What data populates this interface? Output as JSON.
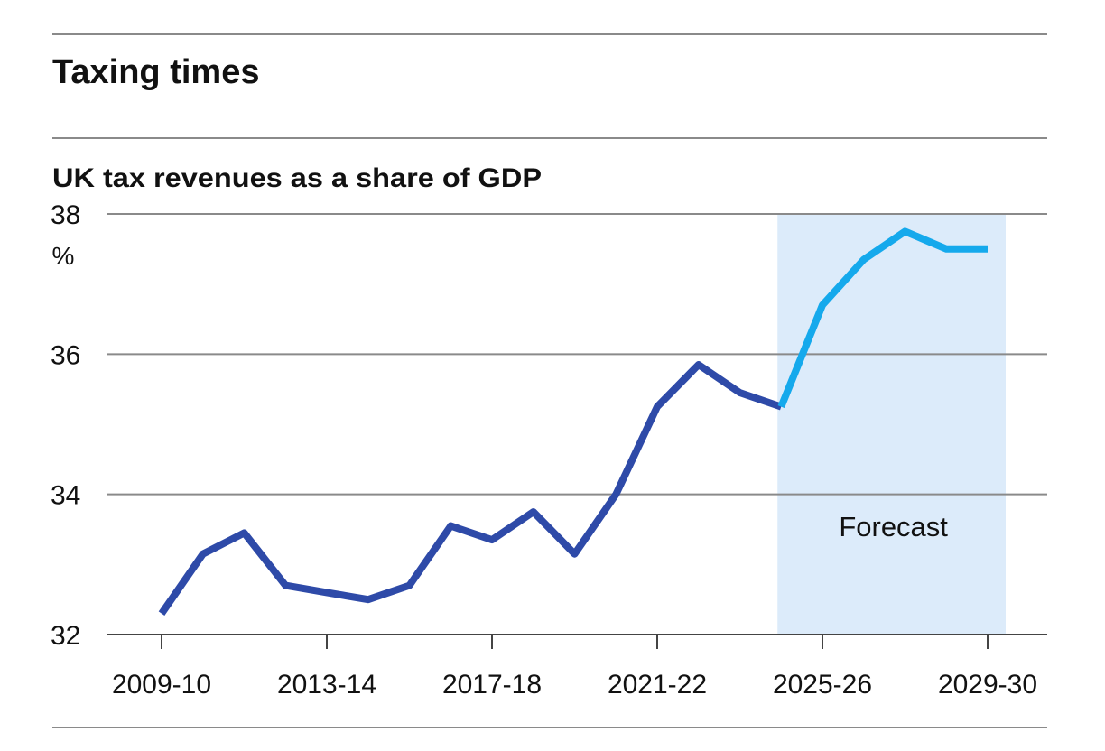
{
  "chart_data": {
    "type": "line",
    "title": "Taxing times",
    "subtitle": "UK tax revenues as a share of GDP",
    "y_unit": "%",
    "ylim": [
      32,
      38
    ],
    "y_ticks": [
      32,
      34,
      36,
      38
    ],
    "x_tick_labels": [
      "2009-10",
      "2013-14",
      "2017-18",
      "2021-22",
      "2025-26",
      "2029-30"
    ],
    "x": [
      "2009-10",
      "2010-11",
      "2011-12",
      "2012-13",
      "2013-14",
      "2014-15",
      "2015-16",
      "2016-17",
      "2017-18",
      "2018-19",
      "2019-20",
      "2020-21",
      "2021-22",
      "2022-23",
      "2023-24",
      "2024-25",
      "2025-26",
      "2026-27",
      "2027-28",
      "2028-29",
      "2029-30"
    ],
    "series": [
      {
        "values": [
          32.3,
          33.15,
          33.45,
          32.7,
          32.6,
          32.5,
          32.7,
          33.55,
          33.35,
          33.75,
          33.15,
          34.0,
          35.25,
          35.85,
          35.45,
          35.25,
          null,
          null,
          null,
          null,
          null
        ],
        "color": "#2e4aa8"
      },
      {
        "values": [
          null,
          null,
          null,
          null,
          null,
          null,
          null,
          null,
          null,
          null,
          null,
          null,
          null,
          null,
          null,
          35.25,
          36.7,
          37.35,
          37.75,
          37.5,
          37.5
        ],
        "color": "#15a9ec"
      }
    ],
    "shaded_region": {
      "from": "2024-25",
      "to": "2029-30",
      "label": "Forecast",
      "color": "#dcebfa"
    },
    "grid": "horizontal",
    "legend": "none"
  }
}
